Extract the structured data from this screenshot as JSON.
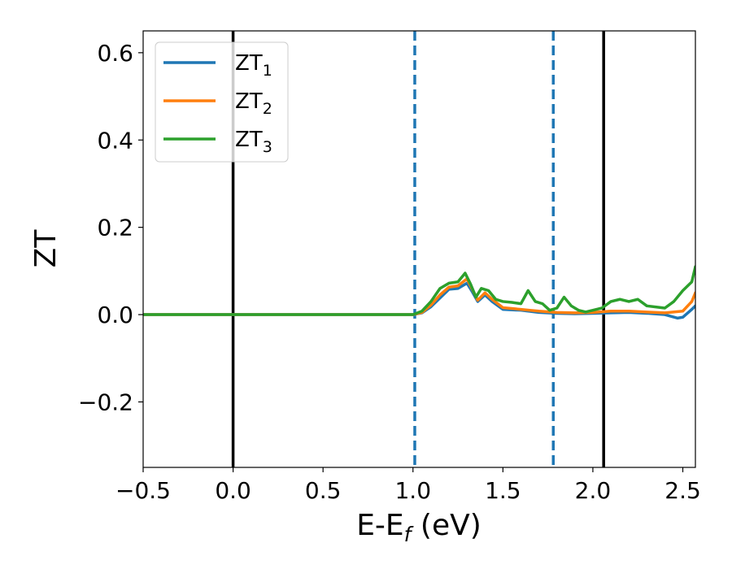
{
  "chart_data": {
    "type": "line",
    "xlabel": "E-E",
    "xlabel_sub": "f",
    "xlabel_unit": " (eV)",
    "ylabel": "ZT",
    "xlim": [
      -0.5,
      2.57
    ],
    "ylim": [
      -0.35,
      0.65
    ],
    "xticks": [
      -0.5,
      0.0,
      0.5,
      1.0,
      1.5,
      2.0,
      2.5
    ],
    "xtick_labels": [
      "−0.5",
      "0.0",
      "0.5",
      "1.0",
      "1.5",
      "2.0",
      "2.5"
    ],
    "yticks": [
      -0.2,
      0.0,
      0.2,
      0.4,
      0.6
    ],
    "ytick_labels": [
      "−0.2",
      "0.0",
      "0.2",
      "0.4",
      "0.6"
    ],
    "legend_position": "top-left",
    "vlines": [
      {
        "x": 0.0,
        "style": "solid",
        "color": "#000000"
      },
      {
        "x": 1.01,
        "style": "dashed",
        "color": "#1f77b4"
      },
      {
        "x": 1.78,
        "style": "dashed",
        "color": "#1f77b4"
      },
      {
        "x": 2.06,
        "style": "solid",
        "color": "#000000"
      }
    ],
    "series": [
      {
        "name": "ZT",
        "sub": "1",
        "color": "#1f77b4",
        "points": [
          [
            -0.5,
            0
          ],
          [
            1.0,
            0
          ],
          [
            1.05,
            0.004
          ],
          [
            1.1,
            0.018
          ],
          [
            1.15,
            0.038
          ],
          [
            1.2,
            0.058
          ],
          [
            1.25,
            0.06
          ],
          [
            1.3,
            0.072
          ],
          [
            1.33,
            0.052
          ],
          [
            1.36,
            0.03
          ],
          [
            1.4,
            0.045
          ],
          [
            1.44,
            0.03
          ],
          [
            1.5,
            0.012
          ],
          [
            1.6,
            0.01
          ],
          [
            1.7,
            0.005
          ],
          [
            1.8,
            0.003
          ],
          [
            1.9,
            0.002
          ],
          [
            2.0,
            0.003
          ],
          [
            2.1,
            0.004
          ],
          [
            2.2,
            0.005
          ],
          [
            2.3,
            0.003
          ],
          [
            2.4,
            0.0
          ],
          [
            2.47,
            -0.008
          ],
          [
            2.5,
            -0.006
          ],
          [
            2.55,
            0.012
          ],
          [
            2.57,
            0.02
          ]
        ]
      },
      {
        "name": "ZT",
        "sub": "2",
        "color": "#ff7f0e",
        "points": [
          [
            -0.5,
            0
          ],
          [
            1.0,
            0
          ],
          [
            1.05,
            0.005
          ],
          [
            1.1,
            0.022
          ],
          [
            1.15,
            0.045
          ],
          [
            1.2,
            0.063
          ],
          [
            1.25,
            0.066
          ],
          [
            1.3,
            0.082
          ],
          [
            1.33,
            0.058
          ],
          [
            1.36,
            0.033
          ],
          [
            1.4,
            0.05
          ],
          [
            1.44,
            0.035
          ],
          [
            1.5,
            0.016
          ],
          [
            1.6,
            0.012
          ],
          [
            1.65,
            0.01
          ],
          [
            1.7,
            0.008
          ],
          [
            1.8,
            0.005
          ],
          [
            1.9,
            0.004
          ],
          [
            2.0,
            0.005
          ],
          [
            2.1,
            0.008
          ],
          [
            2.2,
            0.008
          ],
          [
            2.3,
            0.006
          ],
          [
            2.4,
            0.004
          ],
          [
            2.5,
            0.008
          ],
          [
            2.55,
            0.03
          ],
          [
            2.57,
            0.05
          ]
        ]
      },
      {
        "name": "ZT",
        "sub": "3",
        "color": "#2ca02c",
        "points": [
          [
            -0.5,
            0
          ],
          [
            1.0,
            0
          ],
          [
            1.05,
            0.008
          ],
          [
            1.1,
            0.03
          ],
          [
            1.15,
            0.06
          ],
          [
            1.2,
            0.072
          ],
          [
            1.25,
            0.075
          ],
          [
            1.29,
            0.095
          ],
          [
            1.32,
            0.07
          ],
          [
            1.35,
            0.04
          ],
          [
            1.38,
            0.06
          ],
          [
            1.42,
            0.055
          ],
          [
            1.46,
            0.035
          ],
          [
            1.5,
            0.03
          ],
          [
            1.55,
            0.028
          ],
          [
            1.6,
            0.025
          ],
          [
            1.64,
            0.055
          ],
          [
            1.68,
            0.03
          ],
          [
            1.72,
            0.025
          ],
          [
            1.76,
            0.01
          ],
          [
            1.8,
            0.015
          ],
          [
            1.84,
            0.04
          ],
          [
            1.88,
            0.02
          ],
          [
            1.92,
            0.01
          ],
          [
            1.96,
            0.006
          ],
          [
            2.0,
            0.01
          ],
          [
            2.05,
            0.015
          ],
          [
            2.1,
            0.03
          ],
          [
            2.15,
            0.035
          ],
          [
            2.2,
            0.03
          ],
          [
            2.25,
            0.035
          ],
          [
            2.3,
            0.02
          ],
          [
            2.4,
            0.015
          ],
          [
            2.45,
            0.03
          ],
          [
            2.5,
            0.055
          ],
          [
            2.55,
            0.075
          ],
          [
            2.57,
            0.11
          ]
        ]
      }
    ]
  }
}
